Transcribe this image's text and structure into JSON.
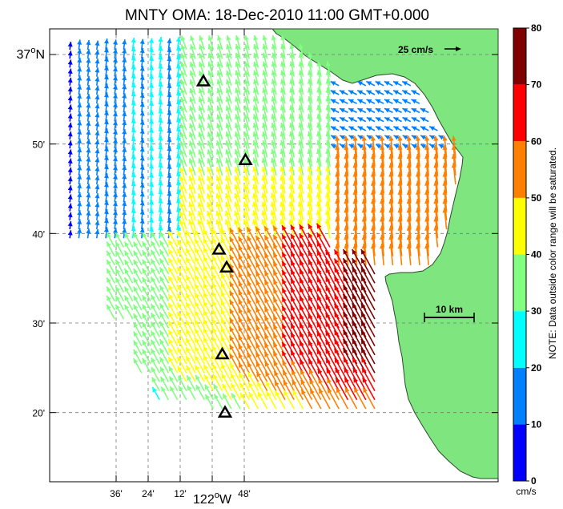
{
  "title": "MNTY OMA: 18-Dec-2010 11:00 GMT+0.000",
  "map": {
    "lat_labels": [
      {
        "lat": 37.0,
        "label": "37",
        "deg": "o",
        "hemi": "N"
      },
      {
        "lat": 36.8333,
        "label": "50'"
      },
      {
        "lat": 36.6667,
        "label": "40'"
      },
      {
        "lat": 36.5,
        "label": "30'"
      },
      {
        "lat": 36.3333,
        "label": "20'"
      }
    ],
    "lon_labels": [
      {
        "lon": -122.4,
        "label": "36'"
      },
      {
        "lon": -122.2667,
        "label": "24'"
      },
      {
        "lon": -122.1333,
        "label": "12'"
      },
      {
        "lon": -122.0,
        "label": "122",
        "deg": "o",
        "hemi": "W"
      },
      {
        "lon": -121.8667,
        "label": "48'"
      }
    ],
    "scale_vector_label": "25 cm/s",
    "scale_bar_label": "10 km",
    "land_color": "#7fe57f",
    "stations": [
      {
        "lon": -122.0367,
        "lat": 36.95
      },
      {
        "lon": -121.8617,
        "lat": 36.8033
      },
      {
        "lon": -121.9717,
        "lat": 36.6367
      },
      {
        "lon": -121.94,
        "lat": 36.6033
      },
      {
        "lon": -121.9583,
        "lat": 36.4417
      },
      {
        "lon": -121.9467,
        "lat": 36.3333
      }
    ]
  },
  "colorbar": {
    "unit": "cm/s",
    "ticks": [
      "0",
      "10",
      "20",
      "30",
      "40",
      "50",
      "60",
      "70",
      "80"
    ],
    "colors": [
      "#0000ff",
      "#0080ff",
      "#00ffff",
      "#80ff80",
      "#ffff00",
      "#ff8000",
      "#ff0000",
      "#800000"
    ],
    "note": "NOTE: Data outside color range will be saturated."
  }
}
